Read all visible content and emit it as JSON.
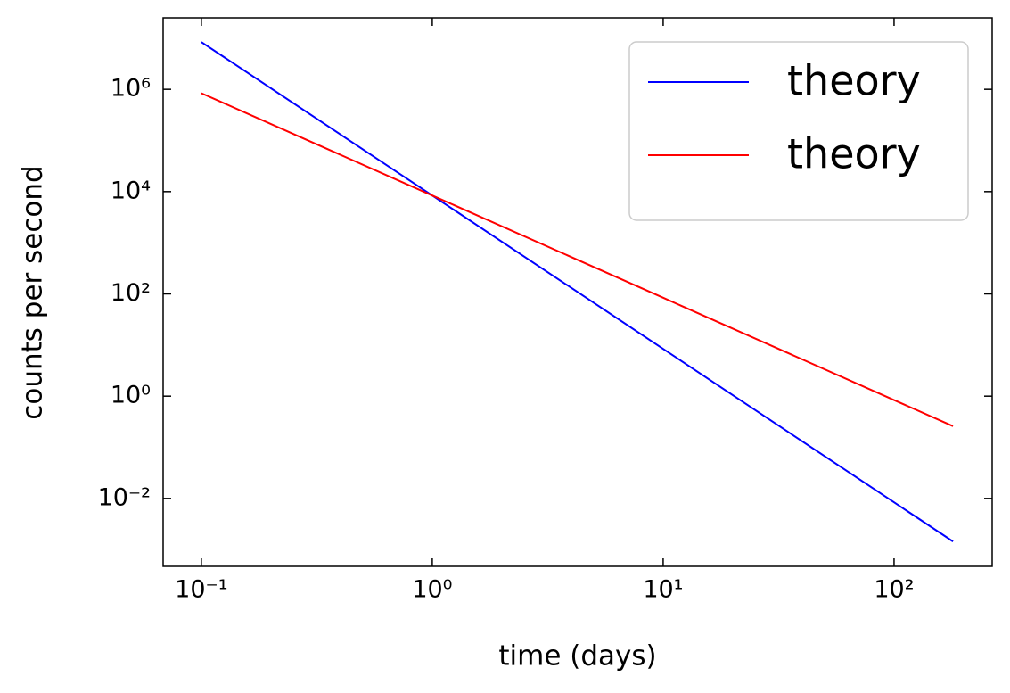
{
  "chart_data": {
    "type": "line",
    "xlabel": "time (days)",
    "ylabel": "counts per second",
    "x": [
      0.1,
      1,
      10,
      100,
      180
    ],
    "series": [
      {
        "name": "theory",
        "color": "#0000ff",
        "values": [
          8400000,
          8400,
          8.4,
          0.0084,
          0.00144
        ]
      },
      {
        "name": "theory",
        "color": "#ff0000",
        "values": [
          840000,
          8400,
          84,
          0.84,
          0.259
        ]
      }
    ],
    "xscale": "log",
    "yscale": "log",
    "xlim": [
      0.0683,
      266
    ],
    "ylim": [
      0.00047,
      25000000
    ],
    "xticks": [
      {
        "value": 0.1,
        "label": "10⁻¹"
      },
      {
        "value": 1,
        "label": "10⁰"
      },
      {
        "value": 10,
        "label": "10¹"
      },
      {
        "value": 100,
        "label": "10²"
      }
    ],
    "yticks": [
      {
        "value": 0.01,
        "label": "10⁻²"
      },
      {
        "value": 1,
        "label": "10⁰"
      },
      {
        "value": 100,
        "label": "10²"
      },
      {
        "value": 10000,
        "label": "10⁴"
      },
      {
        "value": 1000000,
        "label": "10⁶"
      }
    ],
    "legend": "upper right",
    "grid": false
  }
}
